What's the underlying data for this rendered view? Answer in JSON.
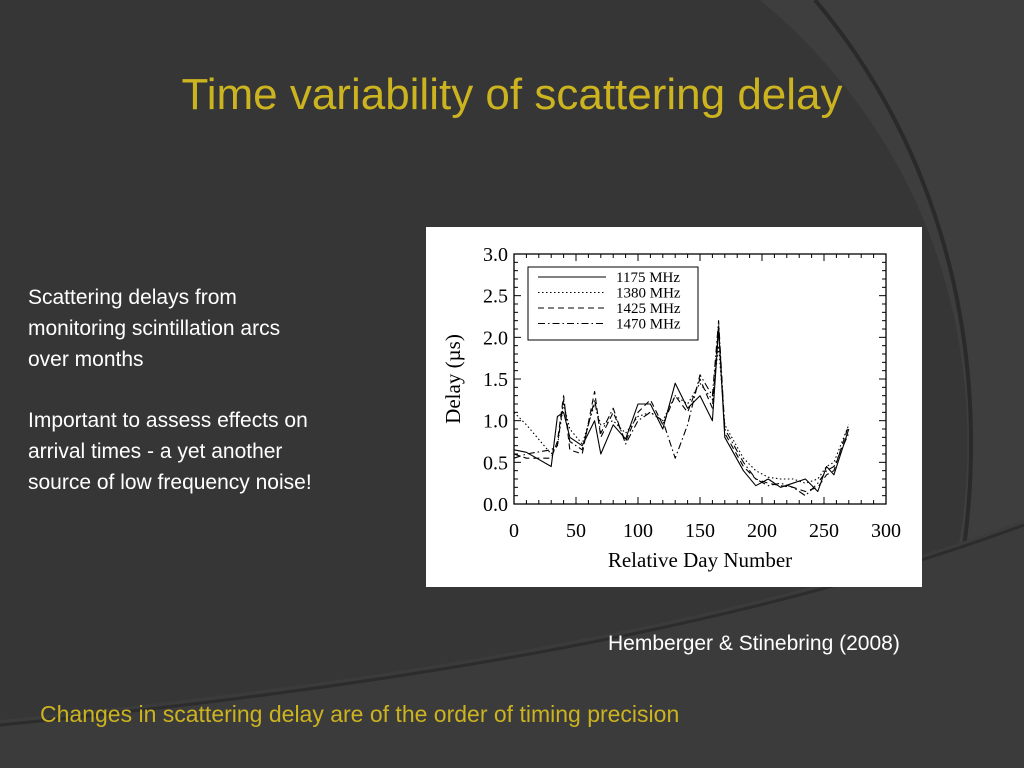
{
  "slide": {
    "title": "Time variability of scattering delay",
    "bullets": [
      "Scattering delays from monitoring scintillation arcs over months",
      "Important to assess effects on arrival times - a yet another source of low frequency noise!"
    ],
    "citation": "Hemberger & Stinebring (2008)",
    "footer_note": "Changes in scattering delay are of the order of timing precision",
    "colors": {
      "background": "#363636",
      "accent": "#ccb320",
      "text": "#ffffff"
    }
  },
  "chart_data": {
    "type": "line",
    "xlabel": "Relative Day Number",
    "ylabel": "Delay (µs)",
    "xlim": [
      0,
      300
    ],
    "ylim": [
      0,
      3
    ],
    "xticks": [
      "0",
      "50",
      "100",
      "150",
      "200",
      "250",
      "300"
    ],
    "yticks": [
      "0.0",
      "0.5",
      "1.0",
      "1.5",
      "2.0",
      "2.5",
      "3.0"
    ],
    "legend_position": "top-left",
    "series": [
      {
        "name": "1175 MHz",
        "style": "solid",
        "x": [
          0,
          10,
          30,
          35,
          40,
          45,
          55,
          65,
          70,
          80,
          90,
          100,
          110,
          120,
          130,
          140,
          150,
          160,
          165,
          170,
          185,
          195,
          205,
          215,
          225,
          235,
          245,
          252,
          258,
          270
        ],
        "y": [
          0.65,
          0.62,
          0.45,
          1.05,
          1.1,
          0.8,
          0.7,
          1.0,
          0.6,
          0.95,
          0.78,
          1.2,
          1.2,
          0.9,
          1.45,
          1.15,
          1.3,
          1.0,
          2.1,
          0.8,
          0.4,
          0.22,
          0.3,
          0.2,
          0.25,
          0.3,
          0.15,
          0.45,
          0.35,
          0.9
        ]
      },
      {
        "name": "1380 MHz",
        "style": "dotted",
        "x": [
          0,
          10,
          30,
          35,
          40,
          45,
          55,
          65,
          70,
          80,
          90,
          100,
          110,
          120,
          130,
          140,
          150,
          160,
          165,
          170,
          185,
          195,
          205,
          215,
          225,
          235,
          245,
          252,
          258,
          270
        ],
        "y": [
          1.1,
          0.95,
          0.6,
          0.7,
          1.2,
          0.9,
          0.72,
          1.2,
          0.95,
          1.0,
          0.85,
          1.05,
          1.1,
          1.0,
          1.3,
          1.2,
          1.45,
          1.25,
          1.9,
          0.95,
          0.55,
          0.4,
          0.32,
          0.3,
          0.3,
          0.25,
          0.3,
          0.45,
          0.5,
          0.95
        ]
      },
      {
        "name": "1425 MHz",
        "style": "dashed",
        "x": [
          0,
          10,
          30,
          35,
          40,
          45,
          55,
          65,
          70,
          80,
          90,
          100,
          110,
          120,
          130,
          140,
          150,
          160,
          165,
          170,
          185,
          195,
          205,
          215,
          225,
          235,
          245,
          252,
          258,
          270
        ],
        "y": [
          0.6,
          0.55,
          0.55,
          0.75,
          1.3,
          0.65,
          0.6,
          1.35,
          0.8,
          1.1,
          0.75,
          1.1,
          1.25,
          0.95,
          1.3,
          1.1,
          1.5,
          1.15,
          2.15,
          0.85,
          0.45,
          0.3,
          0.25,
          0.22,
          0.2,
          0.15,
          0.2,
          0.35,
          0.4,
          0.95
        ]
      },
      {
        "name": "1470 MHz",
        "style": "dash-dot",
        "x": [
          0,
          10,
          30,
          35,
          40,
          45,
          55,
          65,
          70,
          80,
          90,
          100,
          110,
          120,
          130,
          140,
          150,
          160,
          165,
          170,
          185,
          195,
          205,
          215,
          225,
          235,
          245,
          252,
          258,
          270
        ],
        "y": [
          0.55,
          0.6,
          0.65,
          0.7,
          1.25,
          0.75,
          0.65,
          1.25,
          0.85,
          1.15,
          0.72,
          1.0,
          1.1,
          1.0,
          0.55,
          0.95,
          1.55,
          1.3,
          2.2,
          0.9,
          0.5,
          0.3,
          0.22,
          0.25,
          0.2,
          0.1,
          0.25,
          0.4,
          0.45,
          0.85
        ]
      }
    ]
  }
}
